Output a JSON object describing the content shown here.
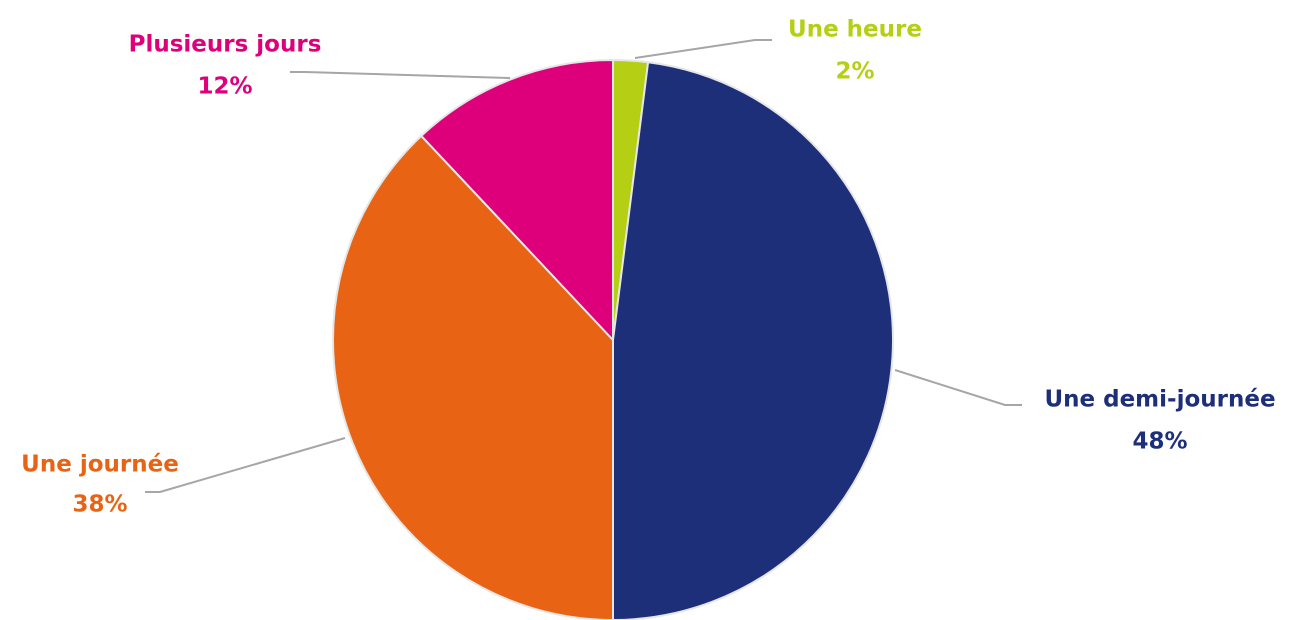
{
  "chart_data": {
    "type": "pie",
    "categories": [
      "Une heure",
      "Une demi-journée",
      "Une journée",
      "Plusieurs jours"
    ],
    "values": [
      2,
      48,
      38,
      12
    ],
    "value_labels": [
      "2%",
      "48%",
      "38%",
      "12%"
    ],
    "colors": [
      "#b5cf14",
      "#1e2f7a",
      "#e86414",
      "#dd007a"
    ]
  }
}
